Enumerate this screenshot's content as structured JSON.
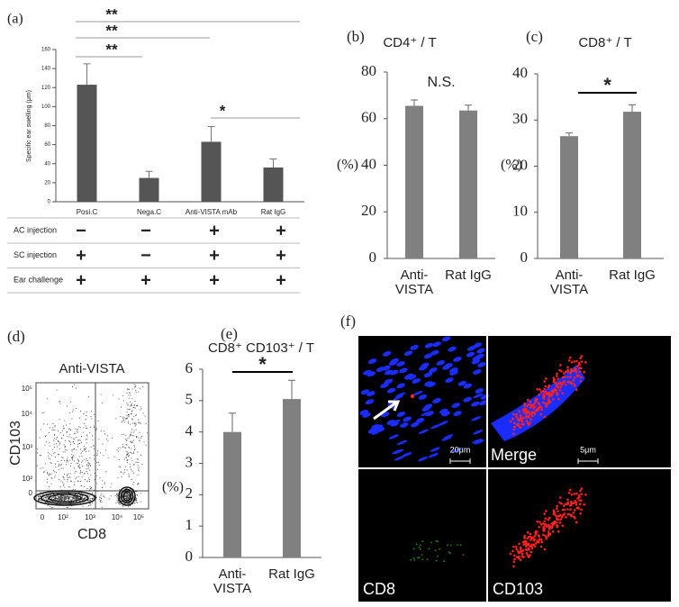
{
  "chart_data": [
    {
      "type": "bar",
      "label": "(a)",
      "y_label": "Specific ear swelling (μm)",
      "categories": [
        "Posi.C",
        "Nega.C",
        "Anti-VISTA mAb",
        "Rat IgG"
      ],
      "values": [
        123,
        25,
        63,
        36
      ],
      "errors": [
        22,
        7,
        16,
        9
      ],
      "color": "#555555",
      "ylim": [
        0,
        160
      ],
      "yticks": [
        0,
        20,
        40,
        60,
        80,
        100,
        120,
        140,
        160
      ],
      "comparisons": [
        {
          "label": "**",
          "groups": [
            "Posi.C",
            "Rat IgG"
          ],
          "bracket": true
        },
        {
          "label": "**",
          "groups": [
            "Posi.C",
            "Anti-VISTA mAb"
          ],
          "bracket": true
        },
        {
          "label": "**",
          "groups": [
            "Posi.C",
            "Nega.C"
          ],
          "bracket": true
        },
        {
          "label": "*",
          "groups": [
            "Anti-VISTA mAb",
            "Rat IgG"
          ],
          "bracket": true
        }
      ],
      "treatment_table": {
        "rows": [
          {
            "label": "AC injection",
            "cells": [
              "−",
              "−",
              "+",
              "+"
            ]
          },
          {
            "label": "SC injection",
            "cells": [
              "+",
              "−",
              "+",
              "+"
            ]
          },
          {
            "label": "Ear challenge",
            "cells": [
              "+",
              "+",
              "+",
              "+"
            ]
          }
        ]
      }
    },
    {
      "type": "bar",
      "label": "(b)",
      "title": "CD4⁺ / T",
      "y_label": "(%)",
      "categories": [
        [
          "Anti-",
          "VISTA"
        ],
        [
          "Rat IgG"
        ]
      ],
      "values": [
        65.5,
        63.5
      ],
      "errors": [
        2.5,
        2.3
      ],
      "color": "#808080",
      "ylim": [
        0,
        80
      ],
      "yticks": [
        0,
        20,
        40,
        60,
        80
      ],
      "comparisons": [
        {
          "label": "N.S.",
          "groups": [
            "Anti-VISTA",
            "Rat IgG"
          ],
          "bracket": false
        }
      ]
    },
    {
      "type": "bar",
      "label": "(c)",
      "title": "CD8⁺ / T",
      "y_label": "(%)",
      "categories": [
        [
          "Anti-",
          "VISTA"
        ],
        [
          "Rat IgG"
        ]
      ],
      "values": [
        26.5,
        31.8
      ],
      "errors": [
        0.7,
        1.5
      ],
      "color": "#808080",
      "ylim": [
        0,
        40
      ],
      "yticks": [
        0,
        10,
        20,
        30,
        40
      ],
      "comparisons": [
        {
          "label": "*",
          "groups": [
            "Anti-VISTA",
            "Rat IgG"
          ],
          "bracket": true
        }
      ]
    },
    {
      "type": "bar",
      "label": "(e)",
      "title": "CD8⁺ CD103⁺ / T",
      "y_label": "(%)",
      "categories": [
        [
          "Anti-",
          "VISTA"
        ],
        [
          "Rat IgG"
        ]
      ],
      "values": [
        4.0,
        5.05
      ],
      "errors": [
        0.6,
        0.6
      ],
      "color": "#808080",
      "ylim": [
        0,
        6
      ],
      "yticks": [
        0,
        1,
        2,
        3,
        4,
        5,
        6
      ],
      "comparisons": [
        {
          "label": "*",
          "groups": [
            "Anti-VISTA",
            "Rat IgG"
          ],
          "bracket": true
        }
      ]
    }
  ],
  "flow_plot": {
    "label": "(d)",
    "title": "Anti-VISTA",
    "x_label": "CD8",
    "y_label": "CD103",
    "x_tick_labels": [
      "0",
      "10²",
      "10³",
      "10⁴",
      "10⁵"
    ],
    "y_tick_labels": [
      "0",
      "10²",
      "10³",
      "10⁴",
      "10⁵"
    ]
  },
  "micrograph": {
    "label": "(f)",
    "scale_bars": [
      "20μm",
      "5μm"
    ],
    "panels": [
      "Merge",
      "CD8",
      "CD103"
    ]
  }
}
